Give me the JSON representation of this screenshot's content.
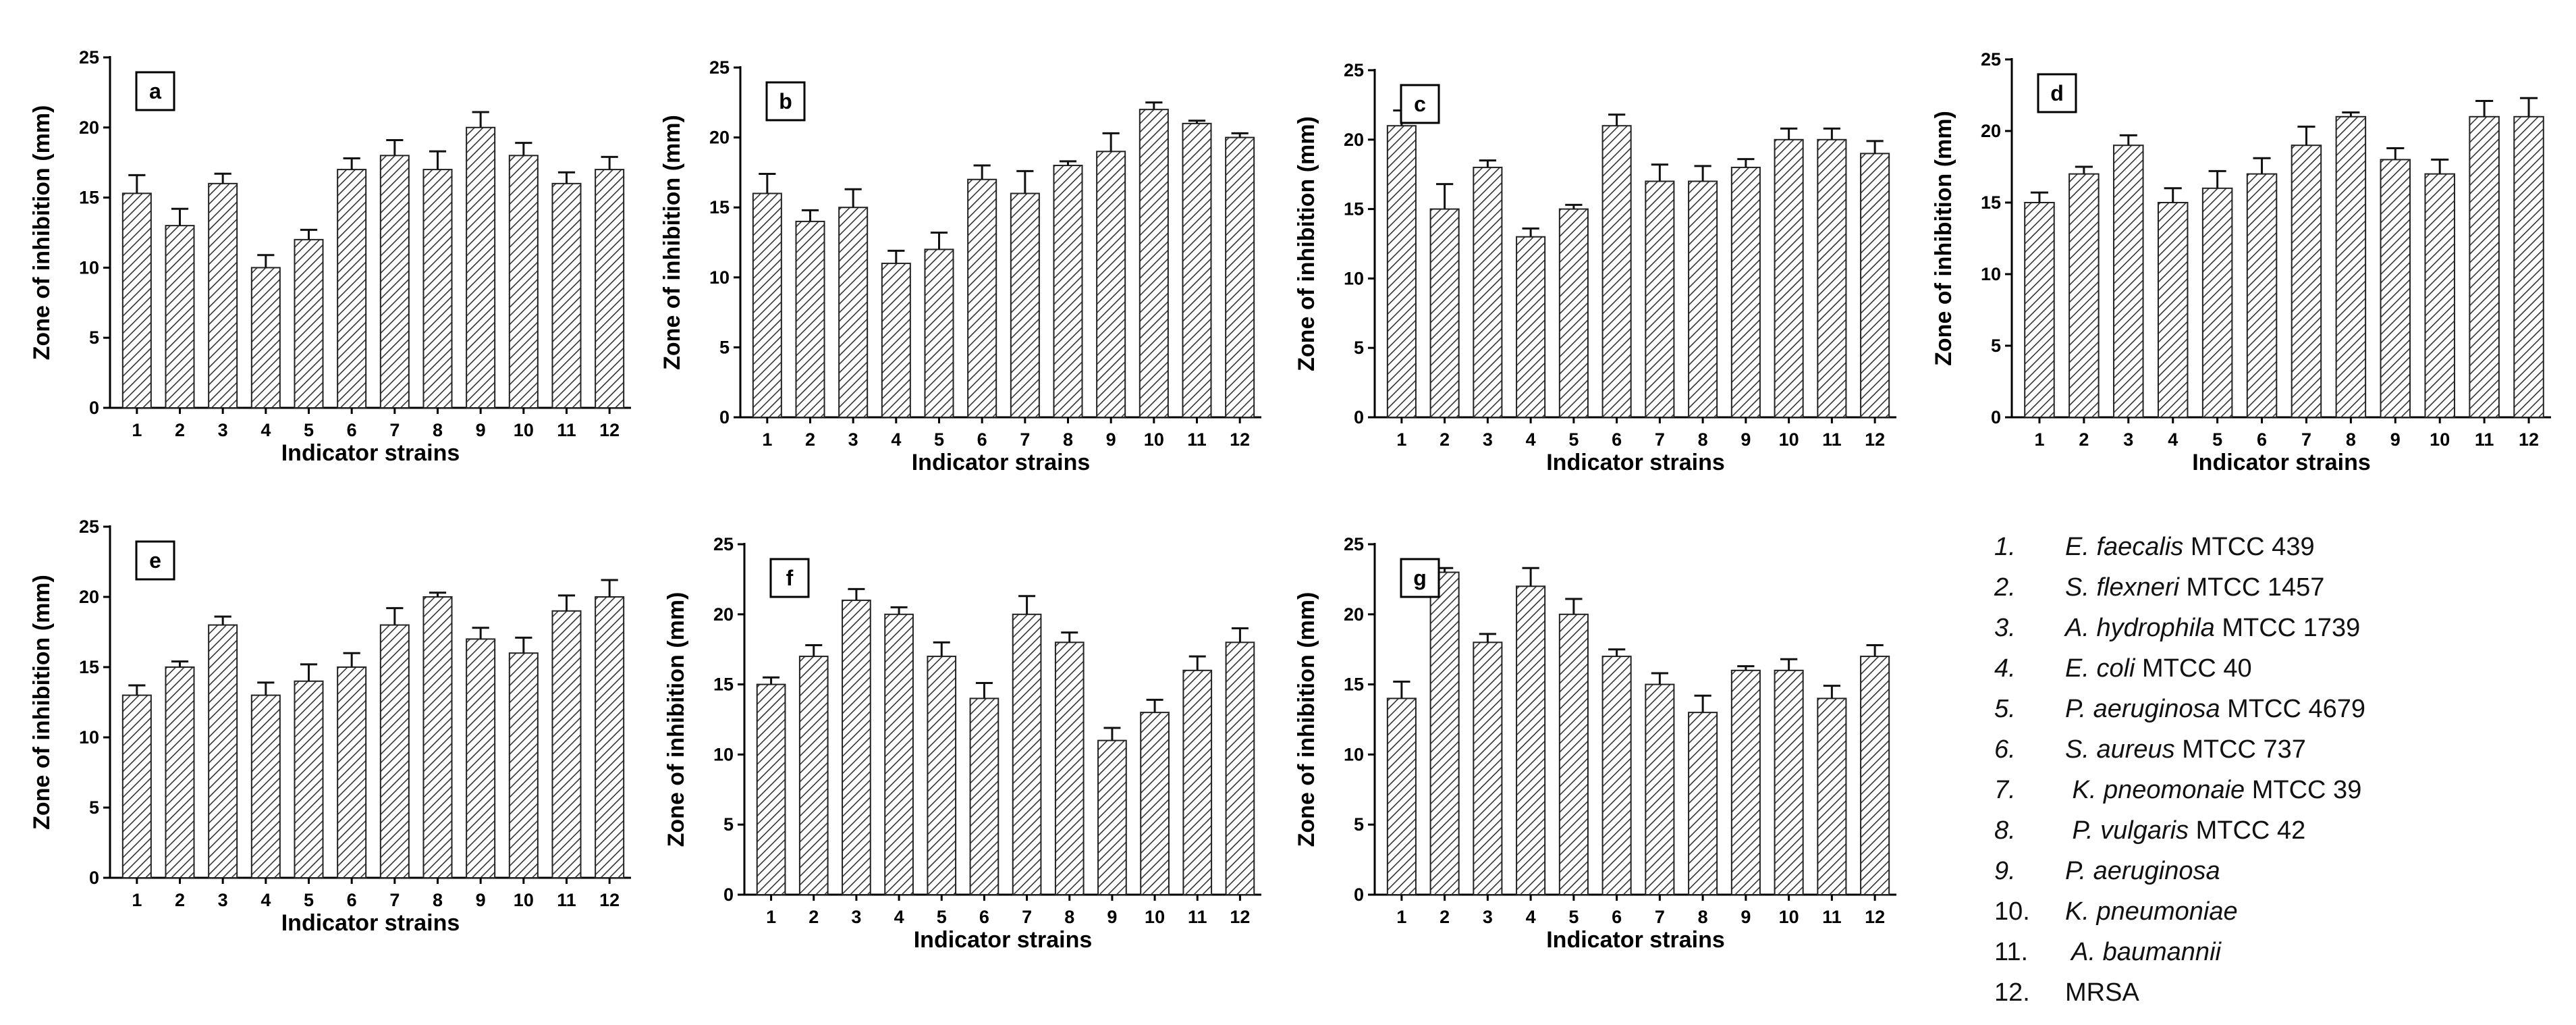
{
  "axes": {
    "xlabel": "Indicator strains",
    "ylabel": "Zone of inhibition (mm)",
    "yticks": [
      "0",
      "5",
      "10",
      "15",
      "20",
      "25"
    ]
  },
  "chart_data": [
    {
      "type": "bar",
      "panel": "a",
      "categories": [
        "1",
        "2",
        "3",
        "4",
        "5",
        "6",
        "7",
        "8",
        "9",
        "10",
        "11",
        "12"
      ],
      "values": [
        15.3,
        13,
        16,
        10,
        12,
        17,
        18,
        17,
        20,
        18,
        16,
        17
      ],
      "errors": [
        1.3,
        1.2,
        0.7,
        0.9,
        0.7,
        0.8,
        1.1,
        1.3,
        1.1,
        0.9,
        0.8,
        0.9
      ],
      "xlabel": "Indicator strains",
      "ylabel": "Zone of inhibition (mm)",
      "ylim": [
        0,
        25
      ]
    },
    {
      "type": "bar",
      "panel": "b",
      "categories": [
        "1",
        "2",
        "3",
        "4",
        "5",
        "6",
        "7",
        "8",
        "9",
        "10",
        "11",
        "12"
      ],
      "values": [
        16,
        14,
        15,
        11,
        12,
        17,
        16,
        18,
        19,
        22,
        21,
        20
      ],
      "errors": [
        1.4,
        0.8,
        1.3,
        0.9,
        1.2,
        1.0,
        1.6,
        0.3,
        1.3,
        0.5,
        0.2,
        0.3
      ],
      "xlabel": "Indicator strains",
      "ylabel": "Zone of inhibition (mm)",
      "ylim": [
        0,
        25
      ]
    },
    {
      "type": "bar",
      "panel": "c",
      "categories": [
        "1",
        "2",
        "3",
        "4",
        "5",
        "6",
        "7",
        "8",
        "9",
        "10",
        "11",
        "12"
      ],
      "values": [
        21,
        15,
        18,
        13,
        15,
        21,
        17,
        17,
        18,
        20,
        20,
        19
      ],
      "errors": [
        1.1,
        1.8,
        0.5,
        0.6,
        0.3,
        0.8,
        1.2,
        1.1,
        0.6,
        0.8,
        0.8,
        0.9
      ],
      "xlabel": "Indicator strains",
      "ylabel": "Zone of inhibition (mm)",
      "ylim": [
        0,
        25
      ]
    },
    {
      "type": "bar",
      "panel": "d",
      "categories": [
        "1",
        "2",
        "3",
        "4",
        "5",
        "6",
        "7",
        "8",
        "9",
        "10",
        "11",
        "12"
      ],
      "values": [
        15,
        17,
        19,
        15,
        16,
        17,
        19,
        21,
        18,
        17,
        21,
        21
      ],
      "errors": [
        0.7,
        0.5,
        0.7,
        1.0,
        1.2,
        1.1,
        1.3,
        0.3,
        0.8,
        1.0,
        1.1,
        1.3
      ],
      "xlabel": "Indicator strains",
      "ylabel": "Zone of inhibition (mm)",
      "ylim": [
        0,
        25
      ]
    },
    {
      "type": "bar",
      "panel": "e",
      "categories": [
        "1",
        "2",
        "3",
        "4",
        "5",
        "6",
        "7",
        "8",
        "9",
        "10",
        "11",
        "12"
      ],
      "values": [
        13,
        15,
        18,
        13,
        14,
        15,
        18,
        20,
        17,
        16,
        19,
        20
      ],
      "errors": [
        0.7,
        0.4,
        0.6,
        0.9,
        1.2,
        1.0,
        1.2,
        0.3,
        0.8,
        1.1,
        1.1,
        1.2
      ],
      "xlabel": "Indicator strains",
      "ylabel": "Zone of inhibition (mm)",
      "ylim": [
        0,
        25
      ]
    },
    {
      "type": "bar",
      "panel": "f",
      "categories": [
        "1",
        "2",
        "3",
        "4",
        "5",
        "6",
        "7",
        "8",
        "9",
        "10",
        "11",
        "12"
      ],
      "values": [
        15,
        17,
        21,
        20,
        17,
        14,
        20,
        18,
        11,
        13,
        16,
        18
      ],
      "errors": [
        0.5,
        0.8,
        0.8,
        0.5,
        1.0,
        1.1,
        1.3,
        0.7,
        0.9,
        0.9,
        1.0,
        1.0
      ],
      "xlabel": "Indicator strains",
      "ylabel": "Zone of inhibition (mm)",
      "ylim": [
        0,
        25
      ]
    },
    {
      "type": "bar",
      "panel": "g",
      "categories": [
        "1",
        "2",
        "3",
        "4",
        "5",
        "6",
        "7",
        "8",
        "9",
        "10",
        "11",
        "12"
      ],
      "values": [
        14,
        23,
        18,
        22,
        20,
        17,
        15,
        13,
        16,
        16,
        14,
        17
      ],
      "errors": [
        1.2,
        0.3,
        0.6,
        1.3,
        1.1,
        0.5,
        0.8,
        1.2,
        0.3,
        0.8,
        0.9,
        0.8
      ],
      "xlabel": "Indicator strains",
      "ylabel": "Zone of inhibition (mm)",
      "ylim": [
        0,
        25
      ]
    }
  ],
  "legend": [
    {
      "num": "1.",
      "species": "E. faecalis",
      "rest": " MTCC 439"
    },
    {
      "num": "2.",
      "species": "S. flexneri",
      "rest": " MTCC 1457"
    },
    {
      "num": "3.",
      "species": "A. hydrophila",
      "rest": " MTCC 1739"
    },
    {
      "num": "4.",
      "species": "E. coli",
      "rest": " MTCC 40"
    },
    {
      "num": "5.",
      "species": "P. aeruginosa",
      "rest": " MTCC 4679"
    },
    {
      "num": "6.",
      "species": "S. aureus",
      "rest": " MTCC 737"
    },
    {
      "num": "7.",
      "species": " K. pneomonaie",
      "rest": " MTCC 39"
    },
    {
      "num": "8.",
      "species": " P. vulgaris",
      "rest": " MTCC 42"
    },
    {
      "num": "9.",
      "species": "P. aeruginosa",
      "rest": ""
    },
    {
      "num": "10.",
      "species": "K. pneumoniae",
      "rest": ""
    },
    {
      "num": "11.",
      "species": " A. baumannii",
      "rest": ""
    },
    {
      "num": "12.",
      "species": "",
      "rest": "MRSA"
    }
  ],
  "colors": {
    "bar_fill": "#ffffff",
    "hatch": "#333333",
    "axis": "#000000"
  }
}
